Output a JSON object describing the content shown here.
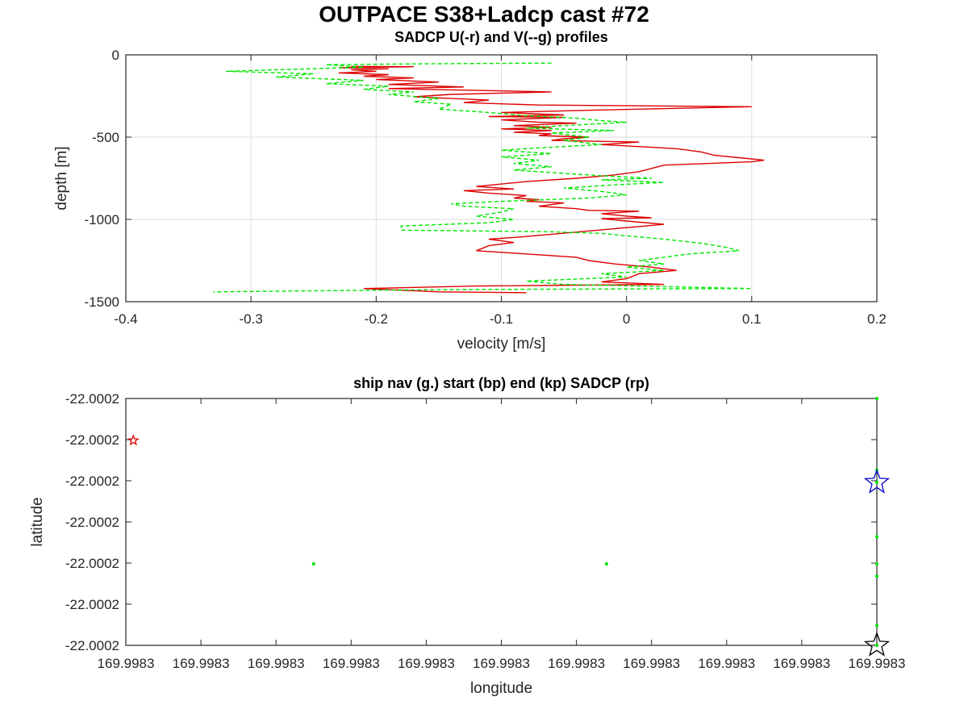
{
  "figure": {
    "title": "OUTPACE S38+Ladcp cast #72"
  },
  "chart_data": [
    {
      "type": "line",
      "title": "SADCP U(-r) and V(--g) profiles",
      "xlabel": "velocity [m/s]",
      "ylabel": "depth [m]",
      "xlim": [
        -0.4,
        0.2
      ],
      "ylim": [
        -1500,
        0
      ],
      "xticks": [
        -0.4,
        -0.3,
        -0.2,
        -0.1,
        0,
        0.1,
        0.2
      ],
      "xtick_labels": [
        "-0.4",
        "-0.3",
        "-0.2",
        "-0.1",
        "0",
        "0.1",
        "0.2"
      ],
      "yticks": [
        0,
        -500,
        -1000,
        -1500
      ],
      "ytick_labels": [
        "0",
        "-500",
        "-1000",
        "-1500"
      ],
      "grid": true,
      "series": [
        {
          "color": "#dd0000",
          "style": "solid",
          "points": [
            [
              -0.22,
              -70
            ],
            [
              -0.17,
              -72
            ],
            [
              -0.23,
              -78
            ],
            [
              -0.19,
              -85
            ],
            [
              -0.22,
              -90
            ],
            [
              -0.2,
              -100
            ],
            [
              -0.23,
              -110
            ],
            [
              -0.19,
              -120
            ],
            [
              -0.21,
              -130
            ],
            [
              -0.17,
              -140
            ],
            [
              -0.2,
              -150
            ],
            [
              -0.15,
              -165
            ],
            [
              -0.19,
              -180
            ],
            [
              -0.13,
              -195
            ],
            [
              -0.19,
              -205
            ],
            [
              -0.16,
              -210
            ],
            [
              -0.06,
              -225
            ],
            [
              -0.14,
              -240
            ],
            [
              -0.17,
              -255
            ],
            [
              -0.14,
              -265
            ],
            [
              -0.11,
              -275
            ],
            [
              -0.13,
              -290
            ],
            [
              -0.07,
              -305
            ],
            [
              0.1,
              -315
            ],
            [
              -0.02,
              -335
            ],
            [
              -0.1,
              -350
            ],
            [
              -0.05,
              -365
            ],
            [
              -0.11,
              -375
            ],
            [
              -0.05,
              -380
            ],
            [
              -0.1,
              -395
            ],
            [
              -0.07,
              -410
            ],
            [
              -0.04,
              -415
            ],
            [
              -0.09,
              -430
            ],
            [
              -0.06,
              -440
            ],
            [
              -0.1,
              -450
            ],
            [
              -0.06,
              -460
            ],
            [
              -0.09,
              -470
            ],
            [
              -0.06,
              -480
            ],
            [
              -0.07,
              -490
            ],
            [
              -0.03,
              -500
            ],
            [
              -0.05,
              -510
            ],
            [
              -0.06,
              -520
            ],
            [
              0.01,
              -530
            ],
            [
              -0.02,
              -545
            ],
            [
              0.04,
              -570
            ],
            [
              0.06,
              -590
            ],
            [
              0.07,
              -610
            ],
            [
              0.09,
              -625
            ],
            [
              0.11,
              -640
            ],
            [
              0.1,
              -650
            ],
            [
              0.03,
              -670
            ],
            [
              0.02,
              -690
            ],
            [
              0.01,
              -710
            ],
            [
              -0.01,
              -730
            ],
            [
              -0.04,
              -750
            ],
            [
              -0.08,
              -770
            ],
            [
              -0.12,
              -800
            ],
            [
              -0.09,
              -815
            ],
            [
              -0.13,
              -825
            ],
            [
              -0.11,
              -840
            ],
            [
              -0.08,
              -855
            ],
            [
              -0.09,
              -870
            ],
            [
              -0.07,
              -880
            ],
            [
              -0.08,
              -890
            ],
            [
              -0.05,
              -900
            ],
            [
              -0.07,
              -920
            ],
            [
              -0.04,
              -935
            ],
            [
              -0.03,
              -945
            ],
            [
              0.01,
              -950
            ],
            [
              -0.02,
              -965
            ],
            [
              0.0,
              -980
            ],
            [
              0.02,
              -990
            ],
            [
              -0.02,
              -995
            ],
            [
              0.0,
              -1010
            ],
            [
              0.03,
              -1030
            ],
            [
              0.0,
              -1050
            ],
            [
              -0.03,
              -1070
            ],
            [
              -0.06,
              -1090
            ],
            [
              -0.09,
              -1110
            ],
            [
              -0.11,
              -1120
            ],
            [
              -0.09,
              -1140
            ],
            [
              -0.11,
              -1160
            ],
            [
              -0.12,
              -1190
            ],
            [
              -0.08,
              -1210
            ],
            [
              -0.04,
              -1230
            ],
            [
              -0.03,
              -1250
            ],
            [
              -0.01,
              -1270
            ],
            [
              0.02,
              -1290
            ],
            [
              0.04,
              -1310
            ],
            [
              0.01,
              -1330
            ],
            [
              0.0,
              -1360
            ],
            [
              -0.02,
              -1380
            ],
            [
              0.03,
              -1395
            ],
            [
              -0.12,
              -1405
            ],
            [
              -0.21,
              -1420
            ],
            [
              -0.15,
              -1440
            ],
            [
              -0.08,
              -1445
            ]
          ]
        },
        {
          "color": "#00e600",
          "style": "dashed",
          "points": [
            [
              -0.06,
              -50
            ],
            [
              -0.17,
              -55
            ],
            [
              -0.24,
              -60
            ],
            [
              -0.21,
              -75
            ],
            [
              -0.32,
              -100
            ],
            [
              -0.25,
              -115
            ],
            [
              -0.28,
              -135
            ],
            [
              -0.21,
              -155
            ],
            [
              -0.24,
              -175
            ],
            [
              -0.19,
              -190
            ],
            [
              -0.21,
              -210
            ],
            [
              -0.17,
              -225
            ],
            [
              -0.19,
              -240
            ],
            [
              -0.15,
              -265
            ],
            [
              -0.17,
              -285
            ],
            [
              -0.14,
              -300
            ],
            [
              -0.15,
              -330
            ],
            [
              -0.11,
              -350
            ],
            [
              -0.08,
              -370
            ],
            [
              -0.04,
              -385
            ],
            [
              -0.02,
              -400
            ],
            [
              0.0,
              -410
            ],
            [
              -0.05,
              -430
            ],
            [
              -0.08,
              -445
            ],
            [
              -0.01,
              -460
            ],
            [
              -0.06,
              -475
            ],
            [
              -0.03,
              -500
            ],
            [
              -0.05,
              -520
            ],
            [
              -0.02,
              -545
            ],
            [
              -0.07,
              -565
            ],
            [
              -0.1,
              -580
            ],
            [
              -0.06,
              -600
            ],
            [
              -0.1,
              -620
            ],
            [
              -0.07,
              -640
            ],
            [
              -0.09,
              -660
            ],
            [
              -0.06,
              -680
            ],
            [
              -0.09,
              -700
            ],
            [
              -0.05,
              -720
            ],
            [
              -0.02,
              -735
            ],
            [
              0.02,
              -750
            ],
            [
              -0.02,
              -760
            ],
            [
              0.03,
              -775
            ],
            [
              -0.01,
              -790
            ],
            [
              -0.05,
              -810
            ],
            [
              -0.02,
              -830
            ],
            [
              0.0,
              -850
            ],
            [
              -0.03,
              -870
            ],
            [
              -0.1,
              -890
            ],
            [
              -0.14,
              -905
            ],
            [
              -0.13,
              -920
            ],
            [
              -0.09,
              -935
            ],
            [
              -0.1,
              -955
            ],
            [
              -0.12,
              -980
            ],
            [
              -0.09,
              -1000
            ],
            [
              -0.11,
              -1020
            ],
            [
              -0.18,
              -1040
            ],
            [
              -0.18,
              -1065
            ],
            [
              -0.12,
              -1070
            ],
            [
              -0.06,
              -1075
            ],
            [
              -0.02,
              -1085
            ],
            [
              0.0,
              -1100
            ],
            [
              0.03,
              -1120
            ],
            [
              0.06,
              -1145
            ],
            [
              0.08,
              -1170
            ],
            [
              0.09,
              -1190
            ],
            [
              0.05,
              -1210
            ],
            [
              0.03,
              -1230
            ],
            [
              0.01,
              -1250
            ],
            [
              0.03,
              -1270
            ],
            [
              0.0,
              -1290
            ],
            [
              0.03,
              -1310
            ],
            [
              -0.02,
              -1330
            ],
            [
              0.0,
              -1350
            ],
            [
              -0.08,
              -1375
            ],
            [
              -0.05,
              -1395
            ],
            [
              0.1,
              -1420
            ],
            [
              -0.1,
              -1425
            ],
            [
              -0.2,
              -1430
            ],
            [
              -0.33,
              -1440
            ]
          ]
        }
      ]
    },
    {
      "type": "scatter",
      "title": "ship nav (g.) start (bp) end (kp) SADCP (rp)",
      "xlabel": "longitude",
      "ylabel": "latitude",
      "xtick_labels": [
        "169.9983",
        "169.9983",
        "169.9983",
        "169.9983",
        "169.9983",
        "169.9983",
        "169.9983",
        "169.9983",
        "169.9983",
        "169.9983",
        "169.9983"
      ],
      "ytick_labels": [
        "-22.0002",
        "-22.0002",
        "-22.0002",
        "-22.0002",
        "-22.0002",
        "-22.0002",
        "-22.0002"
      ],
      "grid": false,
      "series": [
        {
          "marker": "dot",
          "color": "#00e600",
          "points": [
            [
              0.25,
              0.33
            ],
            [
              0.64,
              0.33
            ],
            [
              1.0,
              1.0
            ],
            [
              1.0,
              0.71
            ],
            [
              1.0,
              0.66
            ],
            [
              1.0,
              0.44
            ],
            [
              1.0,
              0.33
            ],
            [
              1.0,
              0.28
            ],
            [
              1.0,
              0.08
            ],
            [
              1.0,
              0.0
            ]
          ]
        },
        {
          "marker": "star",
          "color": "#0000cc",
          "size": "large",
          "points": [
            [
              1.0,
              0.66
            ]
          ]
        },
        {
          "marker": "star",
          "color": "#000000",
          "size": "large",
          "points": [
            [
              1.0,
              0.0
            ]
          ]
        },
        {
          "marker": "star",
          "color": "#dd0000",
          "size": "small",
          "points": [
            [
              0.01,
              0.83
            ]
          ]
        }
      ]
    }
  ]
}
